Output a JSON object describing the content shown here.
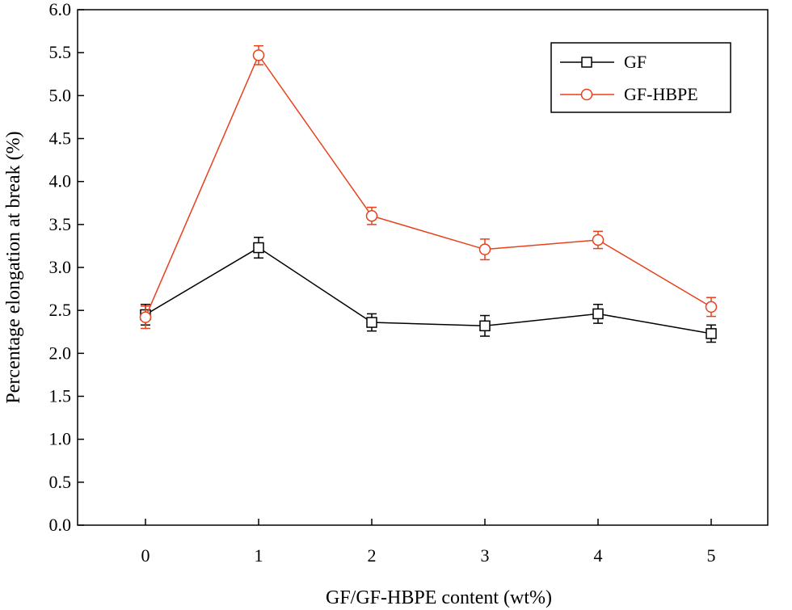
{
  "chart_data": {
    "type": "line",
    "title": "",
    "xlabel": "GF/GF-HBPE content (wt%)",
    "ylabel": "Percentage elongation at break (%)",
    "x": [
      0,
      1,
      2,
      3,
      4,
      5
    ],
    "x_ticks": [
      "0",
      "1",
      "2",
      "3",
      "4",
      "5"
    ],
    "xlim": [
      -0.6,
      5.5
    ],
    "ylim": [
      0.0,
      6.0
    ],
    "y_ticks": [
      "0.0",
      "0.5",
      "1.0",
      "1.5",
      "2.0",
      "2.5",
      "3.0",
      "3.5",
      "4.0",
      "4.5",
      "5.0",
      "5.5",
      "6.0"
    ],
    "grid": false,
    "legend_position": "top-right",
    "series": [
      {
        "name": "GF",
        "color": "#000000",
        "marker": "square",
        "values": [
          2.45,
          3.23,
          2.36,
          2.32,
          2.46,
          2.23
        ],
        "errors": [
          0.12,
          0.12,
          0.1,
          0.12,
          0.11,
          0.1
        ]
      },
      {
        "name": "GF-HBPE",
        "color": "#e8401c",
        "marker": "circle",
        "values": [
          2.42,
          5.47,
          3.6,
          3.21,
          3.32,
          2.54
        ],
        "errors": [
          0.13,
          0.11,
          0.1,
          0.12,
          0.1,
          0.11
        ]
      }
    ]
  }
}
